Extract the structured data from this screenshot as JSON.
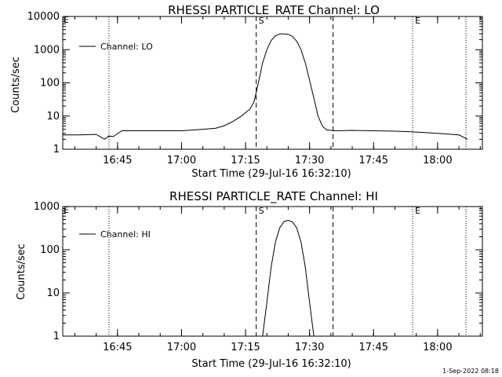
{
  "footer_date": "1-Sep-2022 08:18",
  "chart_data": [
    {
      "type": "line",
      "title": "RHESSI PARTICLE_RATE Channel: LO",
      "xlabel": "Start Time (29-Jul-16 16:32:10)",
      "ylabel": "Counts/sec",
      "yscale": "log",
      "ylim": [
        1,
        10000
      ],
      "xlim": [
        "16:32:10",
        "18:10:30"
      ],
      "y_ticks": [
        1,
        10,
        100,
        1000,
        10000
      ],
      "y_tick_labels": [
        "1",
        "10",
        "100",
        "1000",
        "10000"
      ],
      "x_ticks": [
        "16:45",
        "17:00",
        "17:15",
        "17:30",
        "17:45",
        "18:00"
      ],
      "legend": {
        "label": "Channel: LO",
        "placement": "top-left"
      },
      "markers": [
        {
          "label": "",
          "time": "16:43:00",
          "style": "dotted"
        },
        {
          "label": "S",
          "time": "17:17:30",
          "style": "dashed"
        },
        {
          "label": "",
          "time": "17:35:30",
          "style": "dashed"
        },
        {
          "label": "E",
          "time": "17:54:10",
          "style": "dotted"
        },
        {
          "label": "",
          "time": "18:06:40",
          "style": "dotted"
        }
      ],
      "corner_labels": {
        "left": "E",
        "right": ""
      },
      "series": [
        {
          "x": [
            "16:32:10",
            "16:36",
            "16:40",
            "16:42",
            "16:43",
            "16:44",
            "16:46",
            "16:50",
            "16:55",
            "17:00",
            "17:05",
            "17:08",
            "17:10",
            "17:12",
            "17:14",
            "17:16",
            "17:17",
            "17:18",
            "17:19",
            "17:20",
            "17:21",
            "17:22",
            "17:23",
            "17:24",
            "17:25",
            "17:26",
            "17:27",
            "17:28",
            "17:29",
            "17:30",
            "17:31",
            "17:32",
            "17:33",
            "17:34",
            "17:36",
            "17:40",
            "17:45",
            "17:50",
            "17:55",
            "18:00",
            "18:05",
            "18:07"
          ],
          "values": [
            2.7,
            2.7,
            2.8,
            2.0,
            2.5,
            2.4,
            3.6,
            3.6,
            3.6,
            3.6,
            4.0,
            4.3,
            5.1,
            6.8,
            10,
            16,
            27,
            100,
            400,
            1000,
            1900,
            2600,
            3000,
            3000,
            2900,
            2500,
            1800,
            1000,
            400,
            120,
            35,
            10,
            5,
            3.8,
            3.6,
            3.7,
            3.6,
            3.5,
            3.3,
            3.0,
            2.7,
            2.0
          ]
        }
      ]
    },
    {
      "type": "line",
      "title": "RHESSI PARTICLE_RATE Channel: HI",
      "xlabel": "Start Time (29-Jul-16 16:32:10)",
      "ylabel": "Counts/sec",
      "yscale": "log",
      "ylim": [
        1,
        1000
      ],
      "xlim": [
        "16:32:10",
        "18:10:30"
      ],
      "y_ticks": [
        1,
        10,
        100,
        1000
      ],
      "y_tick_labels": [
        "1",
        "10",
        "100",
        "1000"
      ],
      "x_ticks": [
        "16:45",
        "17:00",
        "17:15",
        "17:30",
        "17:45",
        "18:00"
      ],
      "legend": {
        "label": "Channel: HI",
        "placement": "top-left"
      },
      "markers": [
        {
          "label": "",
          "time": "16:43:00",
          "style": "dotted"
        },
        {
          "label": "S",
          "time": "17:17:30",
          "style": "dashed"
        },
        {
          "label": "",
          "time": "17:35:30",
          "style": "dashed"
        },
        {
          "label": "E",
          "time": "17:54:10",
          "style": "dotted"
        },
        {
          "label": "",
          "time": "18:06:40",
          "style": "dotted"
        }
      ],
      "corner_labels": {
        "left": "E",
        "right": ""
      },
      "series": [
        {
          "x": [
            "17:19:00",
            "17:20",
            "17:21",
            "17:22",
            "17:23",
            "17:24",
            "17:25",
            "17:26",
            "17:27",
            "17:28",
            "17:29",
            "17:30",
            "17:31:00"
          ],
          "values": [
            1,
            6,
            40,
            150,
            320,
            450,
            480,
            440,
            320,
            150,
            40,
            6,
            1
          ]
        }
      ]
    }
  ]
}
